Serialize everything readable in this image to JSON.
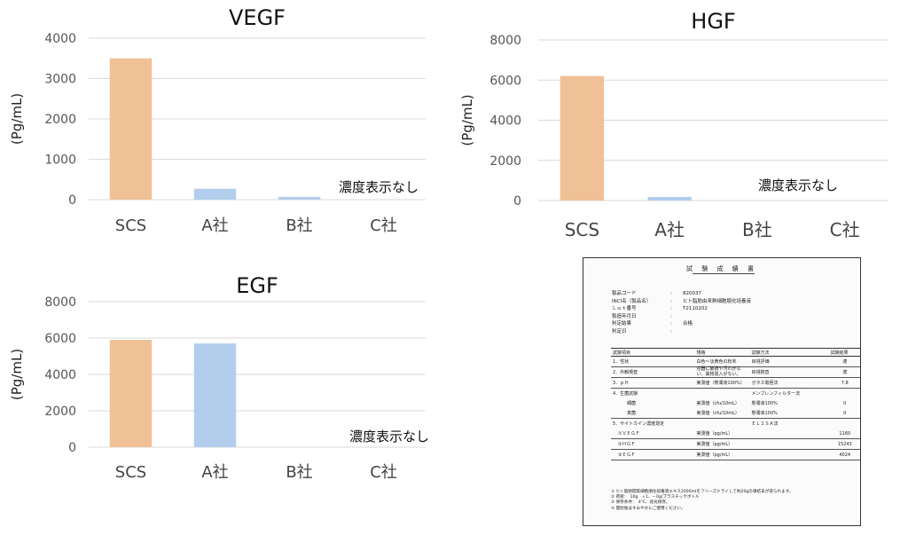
{
  "chart_data": [
    {
      "type": "bar",
      "title": "VEGF",
      "ylabel": "(Pg/mL)",
      "categories": [
        "SCS",
        "A社",
        "B社",
        "C社"
      ],
      "values": [
        3500,
        270,
        70,
        null
      ],
      "ylim": [
        0,
        4000
      ],
      "yticks": [
        0,
        1000,
        2000,
        3000,
        4000
      ],
      "colors": [
        "#F0C096",
        "#B3CEEC",
        "#B3CEEC",
        "#B3CEEC"
      ],
      "annotation": "濃度表示なし",
      "grid": true
    },
    {
      "type": "bar",
      "title": "HGF",
      "ylabel": "(Pg/mL)",
      "categories": [
        "SCS",
        "A社",
        "B社",
        "C社"
      ],
      "values": [
        6200,
        180,
        null,
        null
      ],
      "ylim": [
        0,
        8000
      ],
      "yticks": [
        0,
        2000,
        4000,
        6000,
        8000
      ],
      "colors": [
        "#F0C096",
        "#B3CEEC",
        "#B3CEEC",
        "#B3CEEC"
      ],
      "annotation": "濃度表示なし",
      "grid": true
    },
    {
      "type": "bar",
      "title": "EGF",
      "ylabel": "(Pg/mL)",
      "categories": [
        "SCS",
        "A社",
        "B社",
        "C社"
      ],
      "values": [
        5900,
        5700,
        null,
        null
      ],
      "ylim": [
        0,
        8000
      ],
      "yticks": [
        0,
        2000,
        4000,
        6000,
        8000
      ],
      "colors": [
        "#F0C096",
        "#B3CEEC",
        "#B3CEEC",
        "#B3CEEC"
      ],
      "annotation": "濃度表示なし",
      "grid": true
    }
  ],
  "certificate": {
    "title": "試 験 成 績 書",
    "info": [
      {
        "key": "製品コード",
        "value": "820037"
      },
      {
        "key": "INCI名（製品名）",
        "value": "ヒト脂肪由来幹細胞順化培養液"
      },
      {
        "key": "Ｌｏｔ番号",
        "value": "T2110202"
      },
      {
        "key": "製造年月日",
        "value": ""
      },
      {
        "key": "判定結果",
        "value": "合格"
      },
      {
        "key": "判定日",
        "value": ""
      }
    ],
    "headers": [
      "試験項目",
      "規格",
      "試験方法",
      "試験結果"
    ],
    "rows": [
      [
        "1．性状",
        "白色～淡黄色の粉末",
        "目視評価",
        "適"
      ],
      [
        "2．外観検査",
        "容器に破損や汚れがない。異物混入がない。",
        "目視検査",
        "適"
      ],
      [
        "3．ｐＨ",
        "実測値（懸濁液100%）",
        "ガラス電極法",
        "7.8"
      ],
      [
        "4．生菌試験",
        "",
        "メンブレンフィルター法",
        ""
      ],
      [
        "細菌",
        "実測値（cfu/10mL）",
        "懸濁液100%",
        "0"
      ],
      [
        "真菌",
        "実測値（cfu/10mL）",
        "懸濁液100%",
        "0"
      ],
      [
        "5．サイトカイン濃度測定",
        "",
        "ＥＬＩＳＡ法",
        ""
      ],
      [
        "①ＶＥＧＦ",
        "実測値（pg/mL）",
        "",
        "1160"
      ],
      [
        "②ＨＧＦ",
        "実測値（pg/mL）",
        "",
        "15243"
      ],
      [
        "③ＥＧＦ",
        "実測値（pg/mL）",
        "",
        "4024"
      ]
    ],
    "notes": [
      "① ヒト脂肪間質細胞順化培養液エキス2000mlをフリーズドライして約20gの凍結末が得られます。",
      "② 荷姿：　10g　+1、－0g/プラスチックボトル",
      "③ 保存条件：　4℃、遮光保存。",
      "④ 開封後はすみやかにご使用ください。"
    ]
  }
}
